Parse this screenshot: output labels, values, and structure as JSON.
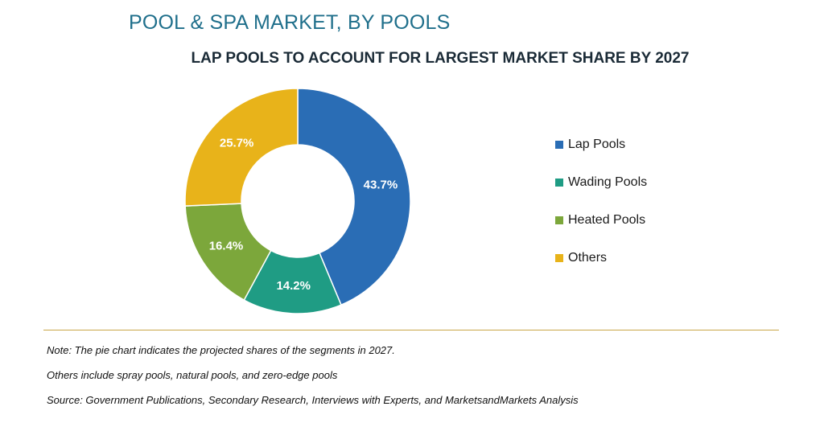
{
  "header": {
    "title": "POOL & SPA MARKET, BY POOLS",
    "subtitle": "LAP POOLS TO ACCOUNT FOR LARGEST MARKET SHARE BY 2027"
  },
  "chart_data": {
    "type": "pie",
    "style": "donut",
    "title": "POOL & SPA MARKET, BY POOLS",
    "subtitle": "LAP POOLS TO ACCOUNT FOR LARGEST MARKET SHARE BY 2027",
    "categories": [
      "Lap Pools",
      "Wading Pools",
      "Heated Pools",
      "Others"
    ],
    "values": [
      43.7,
      14.2,
      16.4,
      25.7
    ],
    "labels": [
      "43.7%",
      "14.2%",
      "16.4%",
      "25.7%"
    ],
    "colors": [
      "#2a6db5",
      "#1f9c84",
      "#7ca73b",
      "#e8b31a"
    ],
    "unit": "%",
    "legend_position": "right"
  },
  "notes": [
    "Note: The pie chart indicates the projected shares of the segments in 2027.",
    "Others include spray pools, natural pools, and zero-edge pools",
    "Source: Government Publications, Secondary Research, Interviews with Experts, and MarketsandMarkets Analysis"
  ]
}
